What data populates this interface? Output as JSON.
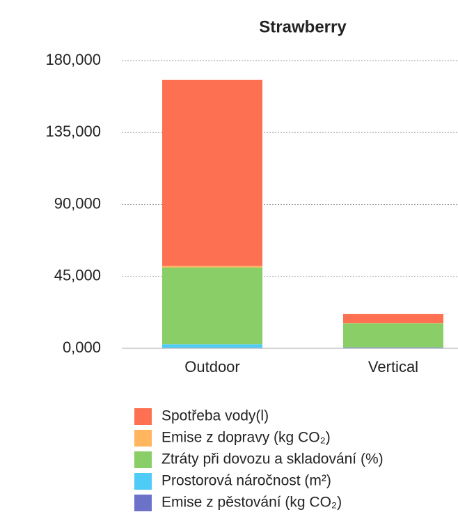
{
  "chart_data": {
    "type": "stacked_bar",
    "title": "Strawberry",
    "categories": [
      "Outdoor",
      "Vertical"
    ],
    "series": [
      {
        "name": "Spotřeba vody(l)",
        "color": "#fd7152",
        "values": [
          116400,
          5700
        ]
      },
      {
        "name": " Emise z dopravy (kg CO₂)",
        "color": "#ffb65f",
        "values": [
          1000,
          100
        ]
      },
      {
        "name": "Ztráty při dovozu a skladování (%)",
        "color": "#8ace67",
        "values": [
          48000,
          15000
        ]
      },
      {
        "name": "Prostorová náročnost (m²)",
        "color": "#4ecbf6",
        "values": [
          2200,
          100
        ]
      },
      {
        "name": "Emise z pěstování (kg CO₂)",
        "color": "#6c72c8",
        "values": [
          300,
          500
        ]
      }
    ],
    "ylim": [
      0,
      180000
    ],
    "yticks": [
      {
        "value": 0,
        "label": "0,000"
      },
      {
        "value": 45000,
        "label": "45,000"
      },
      {
        "value": 90000,
        "label": "90,000"
      },
      {
        "value": 135000,
        "label": "135,000"
      },
      {
        "value": 180000,
        "label": "180,000"
      }
    ],
    "grid": true
  }
}
